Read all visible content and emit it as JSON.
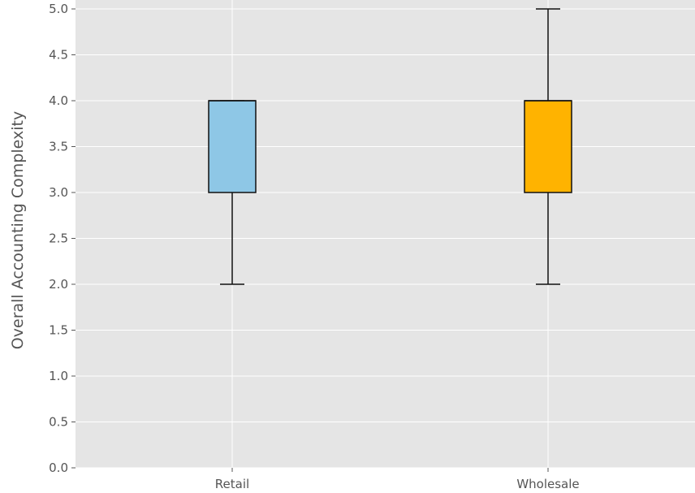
{
  "chart_data": {
    "type": "box",
    "title": "",
    "xlabel": "",
    "ylabel": "Overall Accounting Complexity",
    "ylim": [
      0,
      5
    ],
    "yticks": [
      0.0,
      0.5,
      1.0,
      1.5,
      2.0,
      2.5,
      3.0,
      3.5,
      4.0,
      4.5,
      5.0
    ],
    "ytick_labels": [
      "0.0",
      "0.5",
      "1.0",
      "1.5",
      "2.0",
      "2.5",
      "3.0",
      "3.5",
      "4.0",
      "4.5",
      "5.0"
    ],
    "categories": [
      "Retail",
      "Wholesale"
    ],
    "boxes": [
      {
        "category": "Retail",
        "whisker_low": 2.0,
        "q1": 3.0,
        "median": 4.0,
        "q3": 4.0,
        "whisker_high": 4.0,
        "color": "#8ec7e6"
      },
      {
        "category": "Wholesale",
        "whisker_low": 2.0,
        "q1": 3.0,
        "median": 4.0,
        "q3": 4.0,
        "whisker_high": 5.0,
        "color": "#ffb300"
      }
    ],
    "grid": true,
    "background": "#e5e5e5",
    "gridColor": "#ffffff"
  }
}
